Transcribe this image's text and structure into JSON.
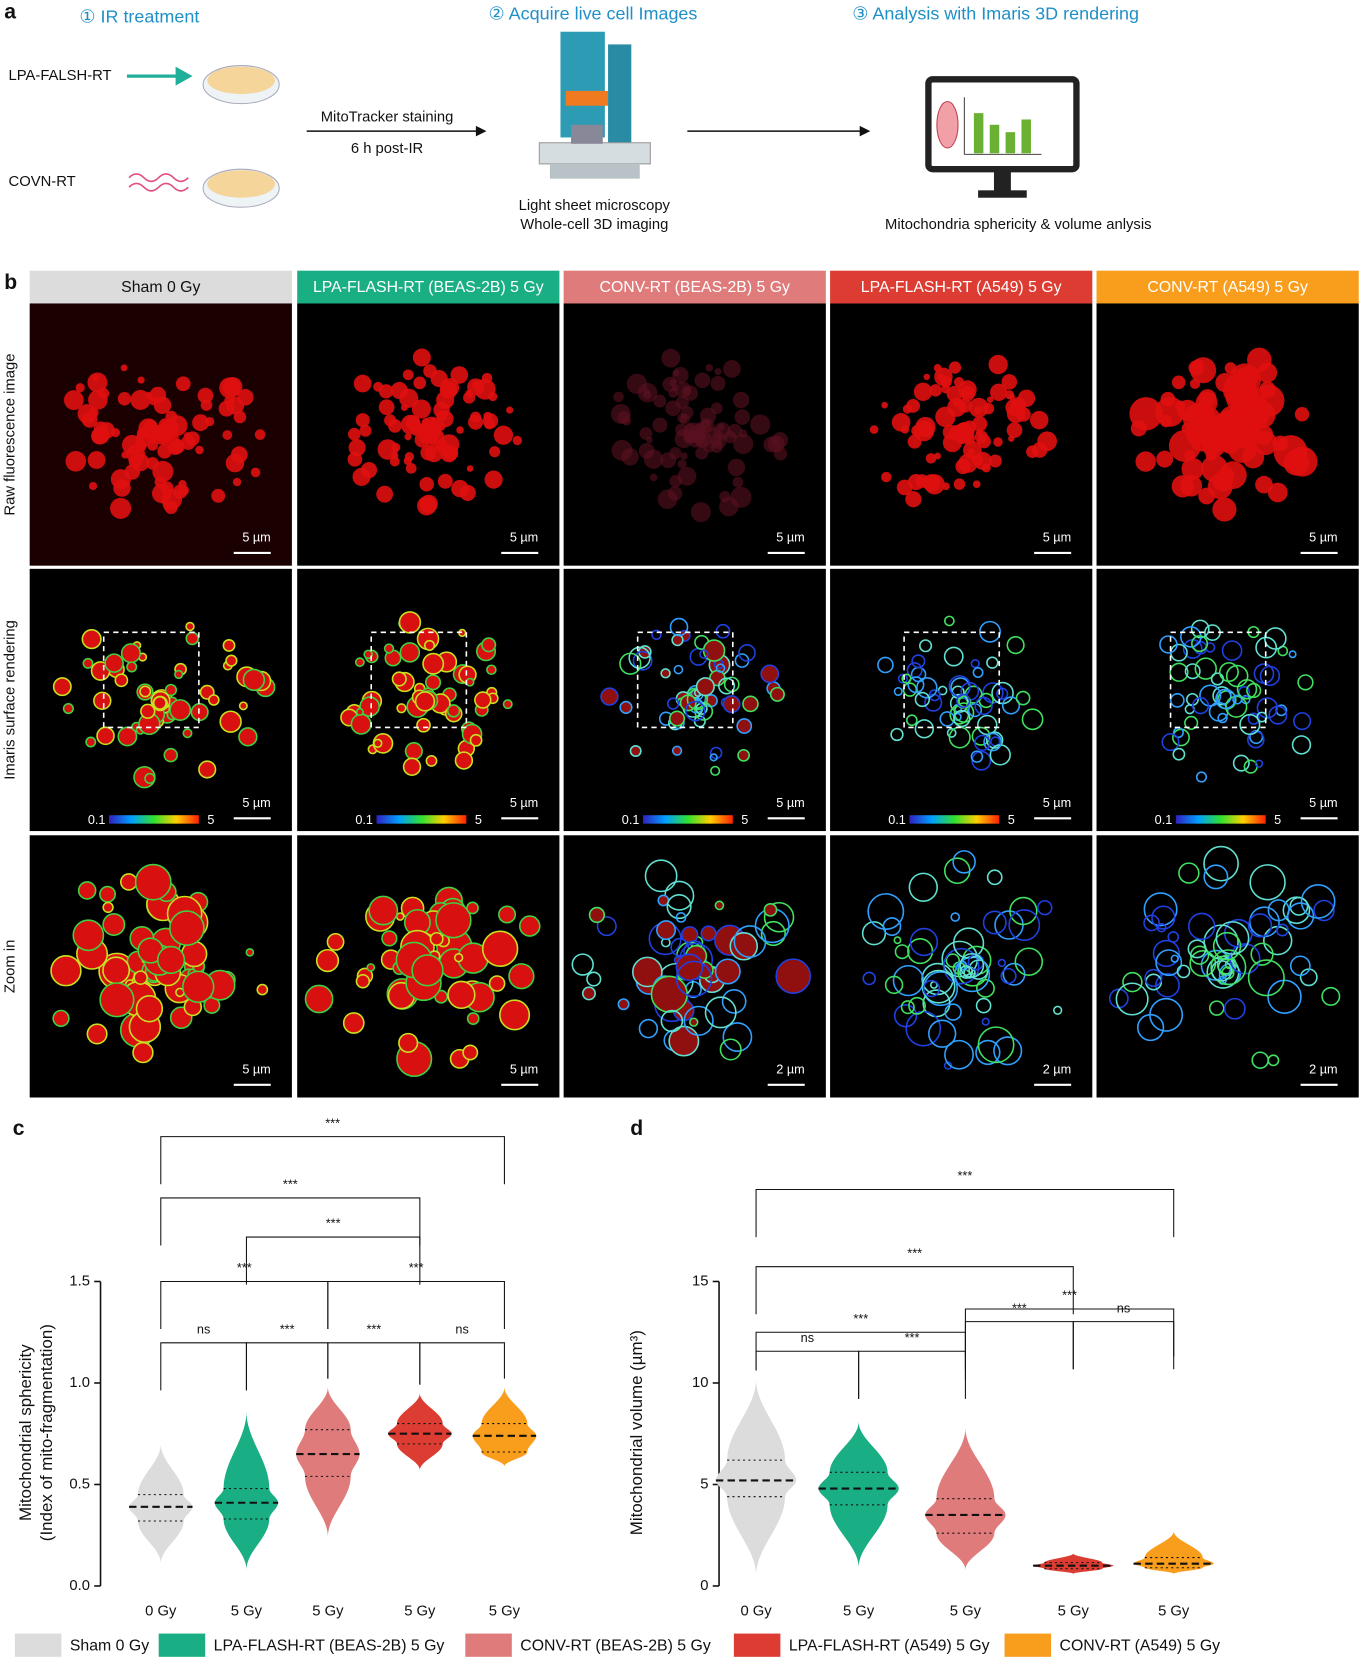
{
  "panel_a": {
    "label": "a",
    "steps": [
      "① IR treatment",
      "② Acquire live cell Images",
      "③ Analysis with Imaris 3D rendering"
    ],
    "groups": [
      "LPA-FALSH-RT",
      "COVN-RT"
    ],
    "staining": [
      "MitoTracker staining",
      "6 h post-IR"
    ],
    "microscopy": [
      "Light sheet microscopy",
      "Whole-cell 3D imaging"
    ],
    "analysis": "Mitochondria sphericity & volume anlysis"
  },
  "panel_b": {
    "label": "b",
    "headers": [
      "Sham 0 Gy",
      "LPA-FLASH-RT (BEAS-2B) 5 Gy",
      "CONV-RT (BEAS-2B) 5 Gy",
      "LPA-FLASH-RT (A549) 5 Gy",
      "CONV-RT (A549) 5 Gy"
    ],
    "rows": [
      "Raw fluorescence image",
      "Imaris surface rendering",
      "Zoom in"
    ],
    "scale_bars": [
      [
        "5 µm",
        "5 µm",
        "5 µm",
        "5 µm",
        "5 µm"
      ],
      [
        "5 µm",
        "5 µm",
        "5 µm",
        "5 µm",
        "5 µm"
      ],
      [
        "5 µm",
        "5 µm",
        "2 µm",
        "2 µm",
        "2 µm"
      ]
    ],
    "colorbar_labels": [
      [
        "0.1",
        "5"
      ],
      [
        "0.1",
        "5"
      ],
      [
        "0.1",
        "5"
      ],
      [
        "0.1",
        "5"
      ],
      [
        "0.1",
        "5"
      ]
    ]
  },
  "legend": {
    "entries": [
      {
        "name": "Sham 0 Gy",
        "color": "#dcdcdc"
      },
      {
        "name": "LPA-FLASH-RT (BEAS-2B) 5 Gy",
        "color": "#1aae84"
      },
      {
        "name": "CONV-RT (BEAS-2B) 5 Gy",
        "color": "#e07b7b"
      },
      {
        "name": "LPA-FLASH-RT (A549) 5 Gy",
        "color": "#dc3c32"
      },
      {
        "name": "CONV-RT (A549) 5 Gy",
        "color": "#f99d1c"
      }
    ]
  },
  "chart_data": [
    {
      "type": "violin",
      "panel": "c",
      "y_label": [
        "Mitochondrial sphericity",
        "(Index of mito-fragmentation)"
      ],
      "categories": [
        "0 Gy",
        "5 Gy",
        "5 Gy",
        "5 Gy",
        "5 Gy"
      ],
      "ylim": [
        0,
        1.5
      ],
      "yticks": [
        {
          "value": 0,
          "label": "0.0"
        },
        0.5,
        {
          "value": 1,
          "label": "1.0"
        },
        1.5
      ],
      "series": [
        {
          "min": 0.11,
          "q1": 0.32,
          "median": 0.39,
          "q3": 0.45,
          "max": 0.7
        },
        {
          "min": 0.08,
          "q1": 0.33,
          "median": 0.41,
          "q3": 0.48,
          "max": 0.86
        },
        {
          "min": 0.24,
          "q1": 0.54,
          "median": 0.65,
          "q3": 0.77,
          "max": 0.98
        },
        {
          "min": 0.57,
          "q1": 0.7,
          "median": 0.75,
          "q3": 0.8,
          "max": 0.95
        },
        {
          "min": 0.59,
          "q1": 0.66,
          "median": 0.74,
          "q3": 0.8,
          "max": 0.98
        }
      ],
      "comparisons": [
        {
          "groups": [
            0,
            1
          ],
          "label": "ns"
        },
        {
          "groups": [
            1,
            2
          ],
          "label": "***"
        },
        {
          "groups": [
            2,
            3
          ],
          "label": "***"
        },
        {
          "groups": [
            3,
            4
          ],
          "label": "ns"
        },
        {
          "groups": [
            0,
            2
          ],
          "label": "***"
        },
        {
          "groups": [
            2,
            4
          ],
          "label": "***"
        },
        {
          "groups": [
            1,
            3
          ],
          "label": "***"
        },
        {
          "groups": [
            0,
            3
          ],
          "label": "***"
        },
        {
          "groups": [
            0,
            4
          ],
          "label": "***"
        }
      ]
    },
    {
      "type": "violin",
      "panel": "d",
      "y_label": [
        "Mitochondrial volume (µm³)"
      ],
      "categories": [
        "0 Gy",
        "5 Gy",
        "5 Gy",
        "5 Gy",
        "5 Gy"
      ],
      "ylim": [
        0,
        15
      ],
      "yticks": [
        0,
        5,
        10,
        15
      ],
      "series": [
        {
          "min": 0.5,
          "q1": 4.4,
          "median": 5.2,
          "q3": 6.2,
          "max": 10.2
        },
        {
          "min": 0.9,
          "q1": 4.0,
          "median": 4.8,
          "q3": 5.6,
          "max": 8.1
        },
        {
          "min": 0.8,
          "q1": 2.6,
          "median": 3.5,
          "q3": 4.3,
          "max": 7.8
        },
        {
          "min": 0.6,
          "q1": 0.85,
          "median": 1.0,
          "q3": 1.15,
          "max": 1.6
        },
        {
          "min": 0.6,
          "q1": 0.9,
          "median": 1.1,
          "q3": 1.4,
          "max": 2.7
        }
      ],
      "comparisons": [
        {
          "groups": [
            0,
            1
          ],
          "label": "ns"
        },
        {
          "groups": [
            1,
            2
          ],
          "label": "***"
        },
        {
          "groups": [
            0,
            2
          ],
          "label": "***"
        },
        {
          "groups": [
            2,
            3
          ],
          "label": "***"
        },
        {
          "groups": [
            3,
            4
          ],
          "label": "ns"
        },
        {
          "groups": [
            2,
            4
          ],
          "label": "***"
        },
        {
          "groups": [
            0,
            3
          ],
          "label": "***"
        },
        {
          "groups": [
            0,
            4
          ],
          "label": "***"
        }
      ]
    }
  ]
}
